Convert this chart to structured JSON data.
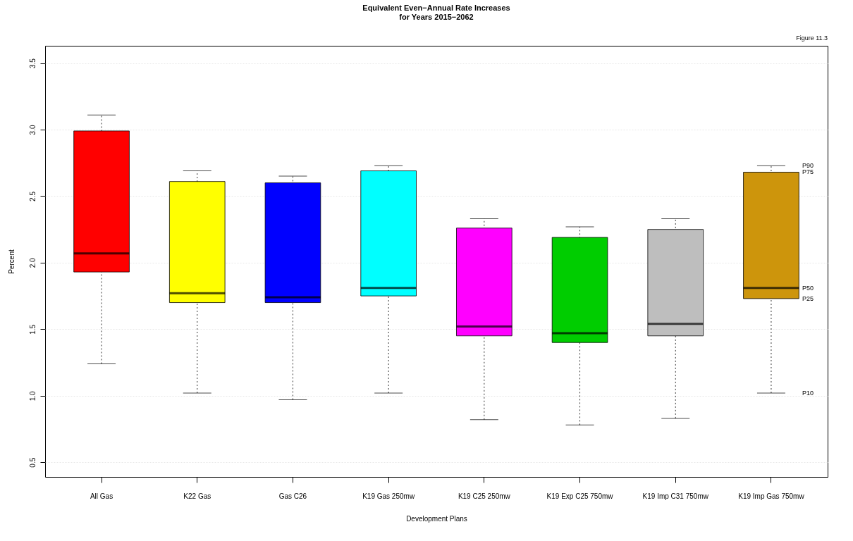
{
  "chart_data": {
    "type": "box",
    "title": "Equivalent Even−Annual Rate Increases\nfor Years 2015−2062",
    "xlabel": "Development Plans",
    "ylabel": "Percent",
    "categories": [
      "All Gas",
      "K22 Gas",
      "Gas C26",
      "K19 Gas 250mw",
      "K19 C25 250mw",
      "K19 Exp C25 750mw",
      "K19 Imp C31 750mw",
      "K19 Imp Gas 750mw"
    ],
    "colors": [
      "#ff0000",
      "#ffff00",
      "#0000ff",
      "#00ffff",
      "#ff00ff",
      "#00cd00",
      "#bebebe",
      "#cd950c"
    ],
    "boxes": [
      {
        "low": 1.24,
        "q1": 1.93,
        "median": 2.07,
        "q3": 2.99,
        "high": 3.11
      },
      {
        "low": 1.02,
        "q1": 1.7,
        "median": 1.77,
        "q3": 2.61,
        "high": 2.69
      },
      {
        "low": 0.97,
        "q1": 1.7,
        "median": 1.74,
        "q3": 2.6,
        "high": 2.65
      },
      {
        "low": 1.02,
        "q1": 1.75,
        "median": 1.81,
        "q3": 2.69,
        "high": 2.73
      },
      {
        "low": 0.82,
        "q1": 1.45,
        "median": 1.52,
        "q3": 2.26,
        "high": 2.33
      },
      {
        "low": 0.78,
        "q1": 1.4,
        "median": 1.47,
        "q3": 2.19,
        "high": 2.27
      },
      {
        "low": 0.83,
        "q1": 1.45,
        "median": 1.54,
        "q3": 2.25,
        "high": 2.33
      },
      {
        "low": 1.02,
        "q1": 1.73,
        "median": 1.81,
        "q3": 2.68,
        "high": 2.73
      }
    ],
    "ylim": [
      0.39,
      3.63
    ],
    "yticks": [
      0.5,
      {
        "value": 1,
        "label": "1.0"
      },
      1.5,
      {
        "value": 2,
        "label": "2.0"
      },
      2.5,
      {
        "value": 3,
        "label": "3.0"
      },
      3.5
    ],
    "grid": "y",
    "annotations": [
      "Figure 11.3",
      "P90",
      "P75",
      "P50",
      "P25",
      "P10"
    ]
  }
}
